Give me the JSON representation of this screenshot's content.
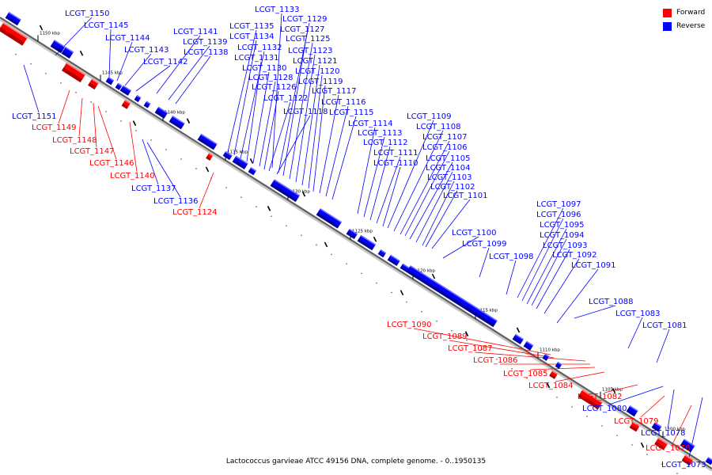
{
  "legend": {
    "forward_label": "Forward",
    "reverse_label": "Reverse",
    "forward_color": "#ff0000",
    "reverse_color": "#0000ff"
  },
  "caption": "Lactococcus garvieae ATCC 49156 DNA, complete genome. - 0..1950135",
  "scale_ticks": [
    {
      "id": "1150",
      "label": "1150 kbp"
    },
    {
      "id": "1145",
      "label": "1145 kbp"
    },
    {
      "id": "1140",
      "label": "1140 kbp"
    },
    {
      "id": "1135",
      "label": "1135 kbp"
    },
    {
      "id": "1130",
      "label": "1130 kbp"
    },
    {
      "id": "1125",
      "label": "1125 kbp"
    },
    {
      "id": "1120",
      "label": "1120 kbp"
    },
    {
      "id": "1115",
      "label": "1115 kbp"
    },
    {
      "id": "1110",
      "label": "1110 kbp"
    },
    {
      "id": "1105",
      "label": "1105 kbp"
    },
    {
      "id": "1100",
      "label": "1100 kbp"
    }
  ],
  "genes": [
    {
      "name": "LCGT_1150",
      "strand": "reverse"
    },
    {
      "name": "LCGT_1145",
      "strand": "reverse"
    },
    {
      "name": "LCGT_1144",
      "strand": "reverse"
    },
    {
      "name": "LCGT_1143",
      "strand": "reverse"
    },
    {
      "name": "LCGT_1142",
      "strand": "reverse"
    },
    {
      "name": "LCGT_1141",
      "strand": "reverse"
    },
    {
      "name": "LCGT_1139",
      "strand": "reverse"
    },
    {
      "name": "LCGT_1138",
      "strand": "reverse"
    },
    {
      "name": "LCGT_1133",
      "strand": "reverse"
    },
    {
      "name": "LCGT_1135",
      "strand": "reverse"
    },
    {
      "name": "LCGT_1134",
      "strand": "reverse"
    },
    {
      "name": "LCGT_1132",
      "strand": "reverse"
    },
    {
      "name": "LCGT_1131",
      "strand": "reverse"
    },
    {
      "name": "LCGT_1130",
      "strand": "reverse"
    },
    {
      "name": "LCGT_1128",
      "strand": "reverse"
    },
    {
      "name": "LCGT_1126",
      "strand": "reverse"
    },
    {
      "name": "LCGT_1122",
      "strand": "reverse"
    },
    {
      "name": "LCGT_1118",
      "strand": "reverse"
    },
    {
      "name": "LCGT_1129",
      "strand": "reverse"
    },
    {
      "name": "LCGT_1127",
      "strand": "reverse"
    },
    {
      "name": "LCGT_1125",
      "strand": "reverse"
    },
    {
      "name": "LCGT_1123",
      "strand": "reverse"
    },
    {
      "name": "LCGT_1121",
      "strand": "reverse"
    },
    {
      "name": "LCGT_1120",
      "strand": "reverse"
    },
    {
      "name": "LCGT_1119",
      "strand": "reverse"
    },
    {
      "name": "LCGT_1117",
      "strand": "reverse"
    },
    {
      "name": "LCGT_1116",
      "strand": "reverse"
    },
    {
      "name": "LCGT_1115",
      "strand": "reverse"
    },
    {
      "name": "LCGT_1114",
      "strand": "reverse"
    },
    {
      "name": "LCGT_1113",
      "strand": "reverse"
    },
    {
      "name": "LCGT_1112",
      "strand": "reverse"
    },
    {
      "name": "LCGT_1111",
      "strand": "reverse"
    },
    {
      "name": "LCGT_1110",
      "strand": "reverse"
    },
    {
      "name": "LCGT_1109",
      "strand": "reverse"
    },
    {
      "name": "LCGT_1108",
      "strand": "reverse"
    },
    {
      "name": "LCGT_1107",
      "strand": "reverse"
    },
    {
      "name": "LCGT_1106",
      "strand": "reverse"
    },
    {
      "name": "LCGT_1105",
      "strand": "reverse"
    },
    {
      "name": "LCGT_1104",
      "strand": "reverse"
    },
    {
      "name": "LCGT_1103",
      "strand": "reverse"
    },
    {
      "name": "LCGT_1102",
      "strand": "reverse"
    },
    {
      "name": "LCGT_1101",
      "strand": "reverse"
    },
    {
      "name": "LCGT_1100",
      "strand": "reverse"
    },
    {
      "name": "LCGT_1099",
      "strand": "reverse"
    },
    {
      "name": "LCGT_1098",
      "strand": "reverse"
    },
    {
      "name": "LCGT_1097",
      "strand": "reverse"
    },
    {
      "name": "LCGT_1096",
      "strand": "reverse"
    },
    {
      "name": "LCGT_1095",
      "strand": "reverse"
    },
    {
      "name": "LCGT_1094",
      "strand": "reverse"
    },
    {
      "name": "LCGT_1093",
      "strand": "reverse"
    },
    {
      "name": "LCGT_1092",
      "strand": "reverse"
    },
    {
      "name": "LCGT_1091",
      "strand": "reverse"
    },
    {
      "name": "LCGT_1088",
      "strand": "reverse"
    },
    {
      "name": "LCGT_1083",
      "strand": "reverse"
    },
    {
      "name": "LCGT_1081",
      "strand": "reverse"
    },
    {
      "name": "LCGT_1080",
      "strand": "reverse"
    },
    {
      "name": "LCGT_1078",
      "strand": "reverse"
    },
    {
      "name": "LCGT_1073",
      "strand": "reverse"
    },
    {
      "name": "LCGT_1151",
      "strand": "reverse"
    },
    {
      "name": "LCGT_1137",
      "strand": "reverse"
    },
    {
      "name": "LCGT_1136",
      "strand": "reverse"
    },
    {
      "name": "LCGT_1149",
      "strand": "forward"
    },
    {
      "name": "LCGT_1148",
      "strand": "forward"
    },
    {
      "name": "LCGT_1147",
      "strand": "forward"
    },
    {
      "name": "LCGT_1146",
      "strand": "forward"
    },
    {
      "name": "LCGT_1140",
      "strand": "forward"
    },
    {
      "name": "LCGT_1124",
      "strand": "forward"
    },
    {
      "name": "LCGT_1090",
      "strand": "forward"
    },
    {
      "name": "LCGT_1089",
      "strand": "forward"
    },
    {
      "name": "LCGT_1087",
      "strand": "forward"
    },
    {
      "name": "LCGT_1086",
      "strand": "forward"
    },
    {
      "name": "LCGT_1085",
      "strand": "forward"
    },
    {
      "name": "LCGT_1084",
      "strand": "forward"
    },
    {
      "name": "LCGT_1082",
      "strand": "forward"
    },
    {
      "name": "LCGT_1079",
      "strand": "forward"
    },
    {
      "name": "LCGT_1076",
      "strand": "forward"
    }
  ]
}
